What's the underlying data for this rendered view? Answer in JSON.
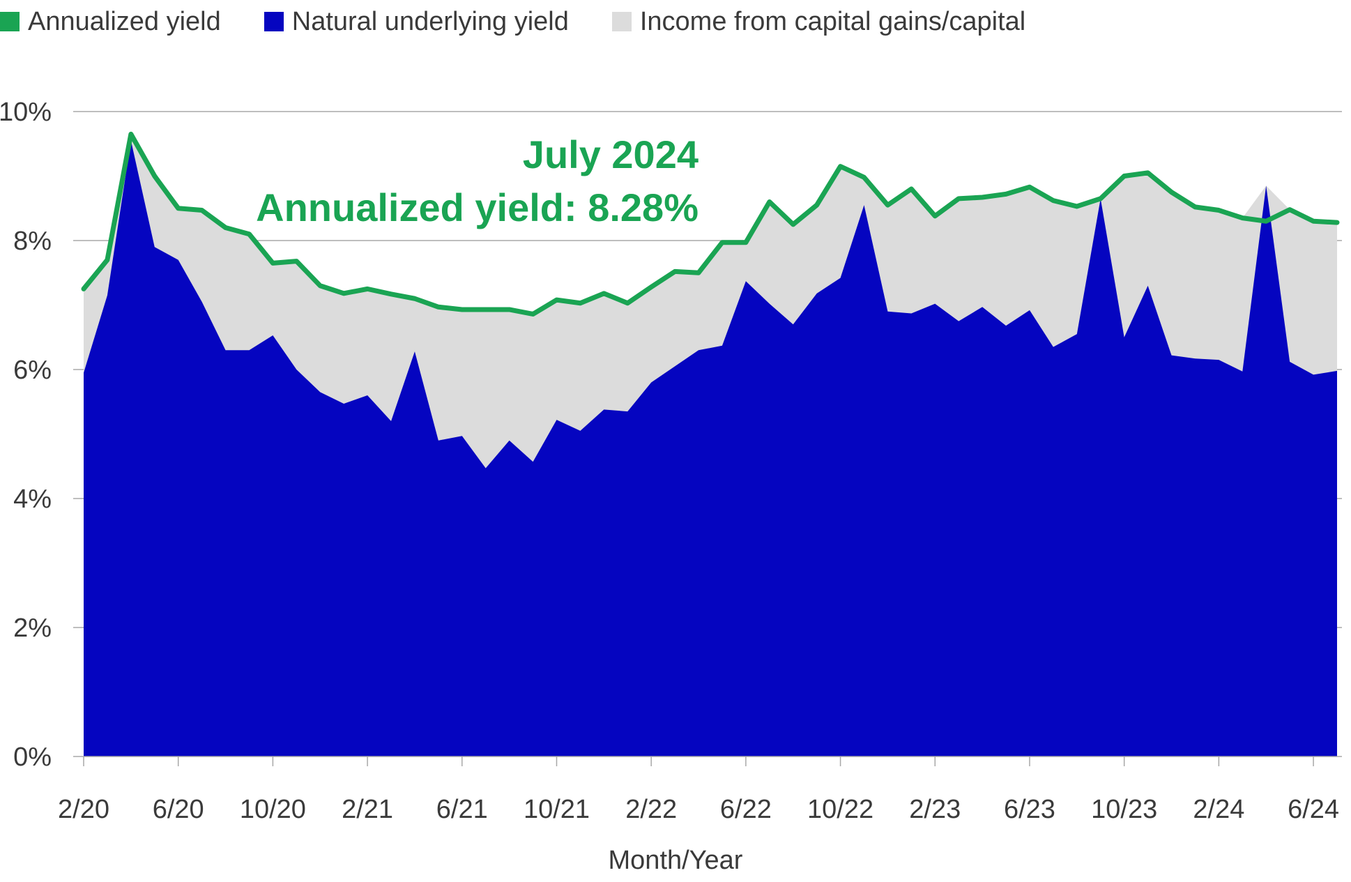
{
  "legend": [
    {
      "key": "annualized",
      "label": "Annualized yield",
      "color": "#1aa453"
    },
    {
      "key": "natural",
      "label": "Natural underlying yield",
      "color": "#0505c0"
    },
    {
      "key": "capital",
      "label": "Income from capital gains/capital",
      "color": "#dcdcdc"
    }
  ],
  "annotation": {
    "line1": "July 2024",
    "line2": "Annualized yield: 8.28%"
  },
  "chart_data": {
    "type": "area",
    "xlabel": "Month/Year",
    "ylabel": "",
    "ylim": [
      0,
      10
    ],
    "y_ticks": [
      "0%",
      "2%",
      "4%",
      "6%",
      "8%",
      "10%"
    ],
    "x_tick_labels": [
      "2/20",
      "6/20",
      "10/20",
      "2/21",
      "6/21",
      "10/21",
      "2/22",
      "6/22",
      "10/22",
      "2/23",
      "6/23",
      "10/23",
      "2/24",
      "6/24"
    ],
    "grid": true,
    "legend_position": "top-left",
    "x": [
      "2/20",
      "3/20",
      "4/20",
      "5/20",
      "6/20",
      "7/20",
      "8/20",
      "9/20",
      "10/20",
      "11/20",
      "12/20",
      "1/21",
      "2/21",
      "3/21",
      "4/21",
      "5/21",
      "6/21",
      "7/21",
      "8/21",
      "9/21",
      "10/21",
      "11/21",
      "12/21",
      "1/22",
      "2/22",
      "3/22",
      "4/22",
      "5/22",
      "6/22",
      "7/22",
      "8/22",
      "9/22",
      "10/22",
      "11/22",
      "12/22",
      "1/23",
      "2/23",
      "3/23",
      "4/23",
      "5/23",
      "6/23",
      "7/23",
      "8/23",
      "9/23",
      "10/23",
      "11/23",
      "12/23",
      "1/24",
      "2/24",
      "3/24",
      "4/24",
      "5/24",
      "6/24",
      "7/24"
    ],
    "series": [
      {
        "name": "Annualized yield",
        "type": "line",
        "values": [
          7.25,
          7.7,
          9.65,
          9.0,
          8.5,
          8.47,
          8.2,
          8.1,
          7.65,
          7.68,
          7.3,
          7.18,
          7.25,
          7.17,
          7.1,
          6.97,
          6.93,
          6.93,
          6.93,
          6.86,
          7.08,
          7.03,
          7.18,
          7.03,
          7.28,
          7.52,
          7.5,
          7.97,
          7.97,
          8.6,
          8.25,
          8.55,
          9.15,
          8.98,
          8.55,
          8.8,
          8.38,
          8.65,
          8.67,
          8.72,
          8.83,
          8.62,
          8.53,
          8.65,
          9.0,
          9.05,
          8.75,
          8.52,
          8.47,
          8.35,
          8.3,
          8.48,
          8.3,
          8.28
        ]
      },
      {
        "name": "Natural underlying yield",
        "type": "area",
        "values": [
          5.95,
          7.15,
          9.55,
          7.9,
          7.7,
          7.05,
          6.3,
          6.3,
          6.53,
          6.0,
          5.65,
          5.47,
          5.6,
          5.2,
          6.28,
          4.9,
          4.97,
          4.47,
          4.9,
          4.57,
          5.22,
          5.05,
          5.38,
          5.35,
          5.8,
          6.05,
          6.3,
          6.37,
          7.37,
          7.02,
          6.7,
          7.18,
          7.42,
          8.55,
          6.9,
          6.87,
          7.02,
          6.75,
          6.97,
          6.68,
          6.92,
          6.35,
          6.55,
          8.65,
          6.5,
          7.3,
          6.22,
          6.17,
          6.15,
          5.97,
          8.85,
          6.12,
          5.92,
          5.98
        ]
      }
    ]
  }
}
